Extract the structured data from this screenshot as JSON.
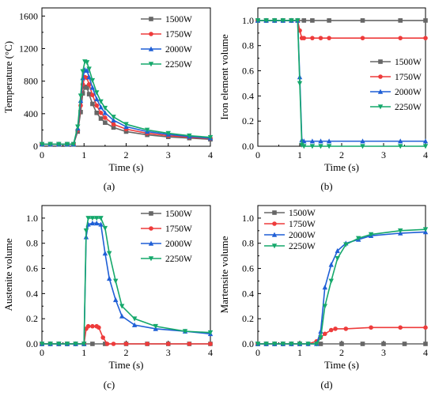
{
  "colors": {
    "1500W": "#666666",
    "1750W": "#ee3b3b",
    "2000W": "#1f5fd6",
    "2250W": "#15a86b"
  },
  "chart_data": [
    {
      "type": "line",
      "panel_label": "(a)",
      "xlabel": "Time (s)",
      "ylabel": "Temperature (°C)",
      "xlim": [
        0,
        4
      ],
      "ylim": [
        0,
        1700
      ],
      "xticks": [
        0,
        1,
        2,
        3,
        4
      ],
      "yticks": [
        0,
        400,
        800,
        1200,
        1600
      ],
      "legend_position": "top-right",
      "grid": false,
      "series": [
        {
          "name": "1500W",
          "marker": "square",
          "x": [
            0,
            0.2,
            0.4,
            0.6,
            0.75,
            0.85,
            0.92,
            0.97,
            1.02,
            1.07,
            1.12,
            1.2,
            1.3,
            1.4,
            1.5,
            1.7,
            2.0,
            2.5,
            3.0,
            3.5,
            4.0
          ],
          "y": [
            25,
            25,
            25,
            25,
            25,
            180,
            420,
            650,
            730,
            720,
            640,
            520,
            410,
            340,
            290,
            230,
            180,
            140,
            115,
            100,
            85
          ]
        },
        {
          "name": "1750W",
          "marker": "circle",
          "x": [
            0,
            0.2,
            0.4,
            0.6,
            0.75,
            0.85,
            0.92,
            0.97,
            1.02,
            1.07,
            1.12,
            1.2,
            1.3,
            1.4,
            1.5,
            1.7,
            2.0,
            2.5,
            3.0,
            3.5,
            4.0
          ],
          "y": [
            25,
            25,
            25,
            25,
            25,
            200,
            500,
            760,
            850,
            840,
            760,
            630,
            500,
            410,
            350,
            270,
            210,
            160,
            130,
            110,
            95
          ]
        },
        {
          "name": "2000W",
          "marker": "triangle-up",
          "x": [
            0,
            0.2,
            0.4,
            0.6,
            0.75,
            0.85,
            0.92,
            0.97,
            1.02,
            1.07,
            1.12,
            1.2,
            1.3,
            1.4,
            1.5,
            1.7,
            2.0,
            2.5,
            3.0,
            3.5,
            4.0
          ],
          "y": [
            25,
            25,
            25,
            25,
            25,
            220,
            560,
            840,
            940,
            930,
            850,
            720,
            580,
            480,
            410,
            320,
            240,
            180,
            145,
            120,
            100
          ]
        },
        {
          "name": "2250W",
          "marker": "triangle-down",
          "x": [
            0,
            0.2,
            0.4,
            0.6,
            0.75,
            0.85,
            0.92,
            0.97,
            1.02,
            1.07,
            1.12,
            1.2,
            1.3,
            1.4,
            1.5,
            1.7,
            2.0,
            2.5,
            3.0,
            3.5,
            4.0
          ],
          "y": [
            25,
            25,
            25,
            25,
            25,
            240,
            620,
            920,
            1040,
            1030,
            950,
            810,
            660,
            550,
            470,
            360,
            270,
            200,
            160,
            130,
            110
          ]
        }
      ]
    },
    {
      "type": "line",
      "panel_label": "(b)",
      "xlabel": "Time (s)",
      "ylabel": "Iron element volume",
      "xlim": [
        0,
        4
      ],
      "ylim": [
        0,
        1.1
      ],
      "xticks": [
        0,
        1,
        2,
        3,
        4
      ],
      "yticks": [
        0.0,
        0.2,
        0.4,
        0.6,
        0.8,
        1.0
      ],
      "legend_position": "center-right",
      "grid": false,
      "series": [
        {
          "name": "1500W",
          "marker": "square",
          "x": [
            0,
            0.2,
            0.4,
            0.6,
            0.8,
            0.95,
            1.1,
            1.3,
            1.7,
            2.5,
            3.4,
            4.0
          ],
          "y": [
            1,
            1,
            1,
            1,
            1,
            1,
            1,
            1,
            1,
            1,
            1,
            1
          ]
        },
        {
          "name": "1750W",
          "marker": "circle",
          "x": [
            0,
            0.2,
            0.4,
            0.6,
            0.8,
            0.95,
            1.0,
            1.05,
            1.1,
            1.3,
            1.5,
            1.7,
            2.5,
            3.4,
            4.0
          ],
          "y": [
            1,
            1,
            1,
            1,
            1,
            1,
            0.92,
            0.86,
            0.86,
            0.86,
            0.86,
            0.86,
            0.86,
            0.86,
            0.86
          ]
        },
        {
          "name": "2000W",
          "marker": "triangle-up",
          "x": [
            0,
            0.2,
            0.4,
            0.6,
            0.8,
            0.95,
            1.0,
            1.05,
            1.1,
            1.3,
            1.5,
            1.7,
            2.5,
            3.4,
            4.0
          ],
          "y": [
            1,
            1,
            1,
            1,
            1,
            1,
            0.55,
            0.05,
            0.04,
            0.04,
            0.04,
            0.04,
            0.04,
            0.04,
            0.04
          ]
        },
        {
          "name": "2250W",
          "marker": "triangle-down",
          "x": [
            0,
            0.2,
            0.4,
            0.6,
            0.8,
            0.95,
            1.0,
            1.05,
            1.1,
            1.3,
            1.5,
            1.7,
            2.5,
            3.4,
            4.0
          ],
          "y": [
            1,
            1,
            1,
            1,
            1,
            1,
            0.5,
            0.01,
            0,
            0,
            0,
            0,
            0,
            0,
            0
          ]
        }
      ]
    },
    {
      "type": "line",
      "panel_label": "(c)",
      "xlabel": "Time (s)",
      "ylabel": "Austenite volume",
      "xlim": [
        0,
        4
      ],
      "ylim": [
        0,
        1.1
      ],
      "xticks": [
        0,
        1,
        2,
        3,
        4
      ],
      "yticks": [
        0.0,
        0.2,
        0.4,
        0.6,
        0.8,
        1.0
      ],
      "legend_position": "top-right",
      "grid": false,
      "series": [
        {
          "name": "1500W",
          "marker": "square",
          "x": [
            0,
            0.2,
            0.4,
            0.6,
            0.8,
            1.0,
            1.2,
            1.5,
            2.0,
            2.5,
            3.0,
            3.5,
            4.0
          ],
          "y": [
            0,
            0,
            0,
            0,
            0,
            0,
            0,
            0,
            0,
            0,
            0,
            0,
            0
          ]
        },
        {
          "name": "1750W",
          "marker": "circle",
          "x": [
            0,
            0.2,
            0.4,
            0.6,
            0.8,
            1.0,
            1.05,
            1.1,
            1.2,
            1.3,
            1.35,
            1.45,
            1.55,
            1.7,
            2.0,
            2.5,
            3.0,
            3.5,
            4.0
          ],
          "y": [
            0,
            0,
            0,
            0,
            0,
            0,
            0.12,
            0.14,
            0.14,
            0.14,
            0.13,
            0.05,
            0,
            0,
            0,
            0,
            0,
            0,
            0
          ]
        },
        {
          "name": "2000W",
          "marker": "triangle-up",
          "x": [
            0,
            0.2,
            0.4,
            0.6,
            0.8,
            1.0,
            1.05,
            1.1,
            1.2,
            1.3,
            1.4,
            1.5,
            1.6,
            1.75,
            1.9,
            2.2,
            2.7,
            3.4,
            4.0
          ],
          "y": [
            0,
            0,
            0,
            0,
            0,
            0,
            0.85,
            0.95,
            0.96,
            0.96,
            0.95,
            0.72,
            0.52,
            0.35,
            0.22,
            0.15,
            0.12,
            0.1,
            0.08
          ]
        },
        {
          "name": "2250W",
          "marker": "triangle-down",
          "x": [
            0,
            0.2,
            0.4,
            0.6,
            0.8,
            1.0,
            1.05,
            1.1,
            1.2,
            1.3,
            1.4,
            1.5,
            1.6,
            1.75,
            1.9,
            2.2,
            2.7,
            3.4,
            4.0
          ],
          "y": [
            0,
            0,
            0,
            0,
            0,
            0,
            0.9,
            1.0,
            1.0,
            1.0,
            1.0,
            0.92,
            0.72,
            0.5,
            0.3,
            0.2,
            0.14,
            0.1,
            0.09
          ]
        }
      ]
    },
    {
      "type": "line",
      "panel_label": "(d)",
      "xlabel": "Time (s)",
      "ylabel": "Martensite volume",
      "xlim": [
        0,
        4
      ],
      "ylim": [
        0,
        1.1
      ],
      "xticks": [
        0,
        1,
        2,
        3,
        4
      ],
      "yticks": [
        0.0,
        0.2,
        0.4,
        0.6,
        0.8,
        1.0
      ],
      "legend_position": "top-left",
      "grid": false,
      "series": [
        {
          "name": "1500W",
          "marker": "square",
          "x": [
            0,
            0.2,
            0.4,
            0.6,
            0.8,
            1.0,
            1.5,
            2.0,
            2.5,
            3.0,
            3.5,
            4.0
          ],
          "y": [
            0,
            0,
            0,
            0,
            0,
            0,
            0,
            0,
            0,
            0,
            0,
            0
          ]
        },
        {
          "name": "1750W",
          "marker": "circle",
          "x": [
            0,
            0.2,
            0.4,
            0.6,
            0.8,
            1.0,
            1.2,
            1.4,
            1.5,
            1.6,
            1.75,
            1.85,
            2.1,
            2.7,
            3.4,
            4.0
          ],
          "y": [
            0,
            0,
            0,
            0,
            0,
            0,
            0,
            0.02,
            0.05,
            0.08,
            0.11,
            0.12,
            0.12,
            0.13,
            0.13,
            0.13
          ]
        },
        {
          "name": "2000W",
          "marker": "triangle-up",
          "x": [
            0,
            0.2,
            0.4,
            0.6,
            0.8,
            1.0,
            1.2,
            1.4,
            1.5,
            1.6,
            1.75,
            1.9,
            2.1,
            2.4,
            2.7,
            3.4,
            4.0
          ],
          "y": [
            0,
            0,
            0,
            0,
            0,
            0,
            0,
            0,
            0.1,
            0.45,
            0.63,
            0.74,
            0.8,
            0.83,
            0.86,
            0.88,
            0.89
          ]
        },
        {
          "name": "2250W",
          "marker": "triangle-down",
          "x": [
            0,
            0.2,
            0.4,
            0.6,
            0.8,
            1.0,
            1.2,
            1.4,
            1.5,
            1.6,
            1.75,
            1.9,
            2.1,
            2.4,
            2.7,
            3.4,
            4.0
          ],
          "y": [
            0,
            0,
            0,
            0,
            0,
            0,
            0,
            0,
            0.05,
            0.3,
            0.5,
            0.68,
            0.79,
            0.84,
            0.87,
            0.9,
            0.91
          ]
        }
      ]
    }
  ]
}
